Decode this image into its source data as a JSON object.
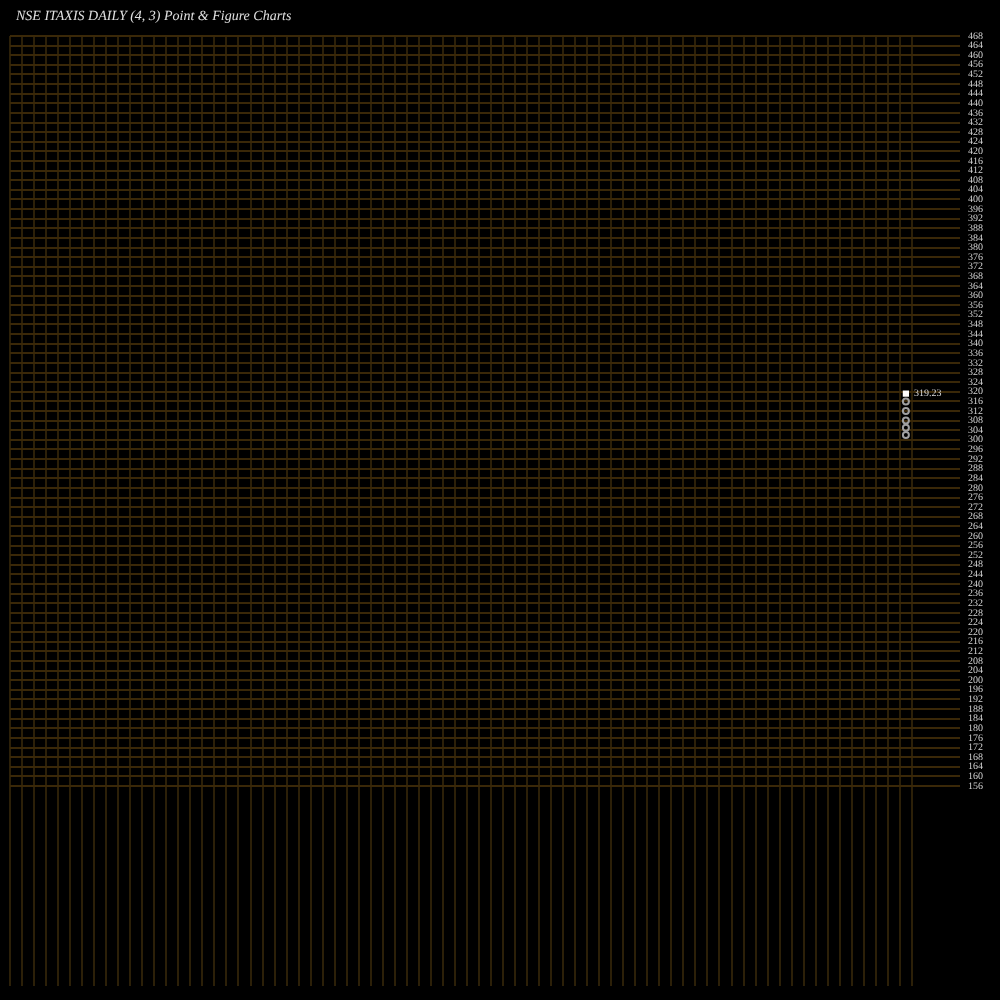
{
  "chart_data": {
    "type": "scatter",
    "title": "NSE ITAXIS DAILY (4, 3) Point & Figure Charts",
    "categories": [
      null,
      null,
      null,
      null,
      null,
      null,
      null,
      null,
      null,
      null,
      null,
      null,
      null,
      null,
      null,
      null,
      null,
      null,
      null,
      null,
      null,
      null,
      null,
      null,
      null,
      null,
      null,
      null,
      null,
      null,
      null,
      null,
      null,
      null,
      null,
      null,
      null,
      null,
      null,
      null,
      null,
      null,
      null,
      null,
      null,
      null,
      null,
      null,
      null,
      null,
      null,
      null,
      null,
      null,
      null,
      null,
      null,
      null,
      null,
      null,
      null,
      null,
      null,
      null,
      null,
      null,
      null,
      null,
      null,
      null,
      null,
      null,
      null,
      null,
      null,
      null,
      null,
      null,
      null
    ],
    "series": [
      {
        "marker": "square",
        "color": "#ffffff",
        "values": [
          null,
          null,
          null,
          null,
          null,
          null,
          null,
          null,
          null,
          null,
          null,
          null,
          null,
          null,
          null,
          null,
          null,
          null,
          null,
          null,
          null,
          null,
          null,
          null,
          null,
          null,
          null,
          null,
          null,
          null,
          null,
          null,
          null,
          null,
          null,
          null,
          null,
          null,
          null,
          null,
          null,
          null,
          null,
          null,
          null,
          null,
          null,
          null,
          null,
          null,
          null,
          null,
          null,
          null,
          null,
          null,
          null,
          null,
          null,
          null,
          null,
          null,
          null,
          null,
          null,
          null,
          null,
          null,
          null,
          null,
          null,
          null,
          null,
          null,
          319.23,
          null,
          null,
          null,
          null
        ],
        "value_labels": [
          null,
          null,
          null,
          null,
          null,
          null,
          null,
          null,
          null,
          null,
          null,
          null,
          null,
          null,
          null,
          null,
          null,
          null,
          null,
          null,
          null,
          null,
          null,
          null,
          null,
          null,
          null,
          null,
          null,
          null,
          null,
          null,
          null,
          null,
          null,
          null,
          null,
          null,
          null,
          null,
          null,
          null,
          null,
          null,
          null,
          null,
          null,
          null,
          null,
          null,
          null,
          null,
          null,
          null,
          null,
          null,
          null,
          null,
          null,
          null,
          null,
          null,
          null,
          null,
          null,
          null,
          null,
          null,
          null,
          null,
          null,
          null,
          null,
          null,
          "319.23",
          null,
          null,
          null,
          null
        ]
      },
      {
        "marker": "circle",
        "color": "#a0a0a0",
        "values": [
          null,
          null,
          null,
          null,
          null,
          null,
          null,
          null,
          null,
          null,
          null,
          null,
          null,
          null,
          null,
          null,
          null,
          null,
          null,
          null,
          null,
          null,
          null,
          null,
          null,
          null,
          null,
          null,
          null,
          null,
          null,
          null,
          null,
          null,
          null,
          null,
          null,
          null,
          null,
          null,
          null,
          null,
          null,
          null,
          null,
          null,
          null,
          null,
          null,
          null,
          null,
          null,
          null,
          null,
          null,
          null,
          null,
          null,
          null,
          null,
          null,
          null,
          null,
          null,
          null,
          null,
          null,
          null,
          null,
          null,
          null,
          null,
          null,
          null,
          316,
          null,
          null,
          null,
          null
        ]
      },
      {
        "marker": "circle",
        "color": "#a0a0a0",
        "values": [
          null,
          null,
          null,
          null,
          null,
          null,
          null,
          null,
          null,
          null,
          null,
          null,
          null,
          null,
          null,
          null,
          null,
          null,
          null,
          null,
          null,
          null,
          null,
          null,
          null,
          null,
          null,
          null,
          null,
          null,
          null,
          null,
          null,
          null,
          null,
          null,
          null,
          null,
          null,
          null,
          null,
          null,
          null,
          null,
          null,
          null,
          null,
          null,
          null,
          null,
          null,
          null,
          null,
          null,
          null,
          null,
          null,
          null,
          null,
          null,
          null,
          null,
          null,
          null,
          null,
          null,
          null,
          null,
          null,
          null,
          null,
          null,
          null,
          null,
          312,
          null,
          null,
          null,
          null
        ]
      },
      {
        "marker": "circle",
        "color": "#a0a0a0",
        "values": [
          null,
          null,
          null,
          null,
          null,
          null,
          null,
          null,
          null,
          null,
          null,
          null,
          null,
          null,
          null,
          null,
          null,
          null,
          null,
          null,
          null,
          null,
          null,
          null,
          null,
          null,
          null,
          null,
          null,
          null,
          null,
          null,
          null,
          null,
          null,
          null,
          null,
          null,
          null,
          null,
          null,
          null,
          null,
          null,
          null,
          null,
          null,
          null,
          null,
          null,
          null,
          null,
          null,
          null,
          null,
          null,
          null,
          null,
          null,
          null,
          null,
          null,
          null,
          null,
          null,
          null,
          null,
          null,
          null,
          null,
          null,
          null,
          null,
          null,
          308,
          null,
          null,
          null,
          null
        ]
      },
      {
        "marker": "circle",
        "color": "#a0a0a0",
        "values": [
          null,
          null,
          null,
          null,
          null,
          null,
          null,
          null,
          null,
          null,
          null,
          null,
          null,
          null,
          null,
          null,
          null,
          null,
          null,
          null,
          null,
          null,
          null,
          null,
          null,
          null,
          null,
          null,
          null,
          null,
          null,
          null,
          null,
          null,
          null,
          null,
          null,
          null,
          null,
          null,
          null,
          null,
          null,
          null,
          null,
          null,
          null,
          null,
          null,
          null,
          null,
          null,
          null,
          null,
          null,
          null,
          null,
          null,
          null,
          null,
          null,
          null,
          null,
          null,
          null,
          null,
          null,
          null,
          null,
          null,
          null,
          null,
          null,
          null,
          305,
          null,
          null,
          null,
          null
        ]
      },
      {
        "marker": "circle",
        "color": "#a0a0a0",
        "values": [
          null,
          null,
          null,
          null,
          null,
          null,
          null,
          null,
          null,
          null,
          null,
          null,
          null,
          null,
          null,
          null,
          null,
          null,
          null,
          null,
          null,
          null,
          null,
          null,
          null,
          null,
          null,
          null,
          null,
          null,
          null,
          null,
          null,
          null,
          null,
          null,
          null,
          null,
          null,
          null,
          null,
          null,
          null,
          null,
          null,
          null,
          null,
          null,
          null,
          null,
          null,
          null,
          null,
          null,
          null,
          null,
          null,
          null,
          null,
          null,
          null,
          null,
          null,
          null,
          null,
          null,
          null,
          null,
          null,
          null,
          null,
          null,
          null,
          null,
          302,
          null,
          null,
          null,
          null
        ]
      }
    ],
    "ylim": [
      156,
      468
    ],
    "yticks": [
      156,
      160,
      164,
      168,
      172,
      176,
      180,
      184,
      188,
      192,
      196,
      200,
      204,
      208,
      212,
      216,
      220,
      224,
      228,
      232,
      236,
      240,
      244,
      248,
      252,
      256,
      260,
      264,
      268,
      272,
      276,
      280,
      284,
      288,
      292,
      296,
      300,
      304,
      308,
      312,
      316,
      320,
      324,
      328,
      332,
      336,
      340,
      344,
      348,
      352,
      356,
      360,
      364,
      368,
      372,
      376,
      380,
      384,
      388,
      392,
      396,
      400,
      404,
      408,
      412,
      416,
      420,
      424,
      428,
      432,
      436,
      440,
      444,
      448,
      452,
      456,
      460,
      464,
      468
    ],
    "grid": true,
    "tick_labels": "y"
  }
}
